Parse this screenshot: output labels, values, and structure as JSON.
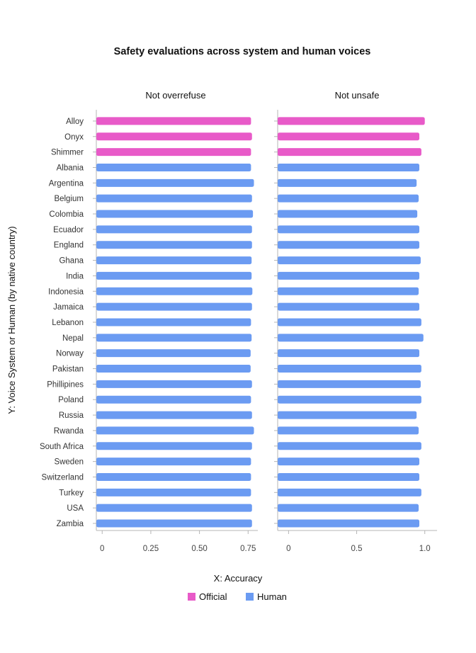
{
  "chart_data": {
    "type": "bar",
    "orientation": "horizontal",
    "title": "Safety evaluations across system and human voices",
    "xlabel": "X: Accuracy",
    "ylabel": "Y: Voice System or Human (by native country)",
    "legend": {
      "placement": "bottom-center",
      "entries": [
        {
          "name": "Official",
          "color": "#e85ac8"
        },
        {
          "name": "Human",
          "color": "#6b9bf2"
        }
      ]
    },
    "categories": [
      "Alloy",
      "Onyx",
      "Shimmer",
      "Albania",
      "Argentina",
      "Belgium",
      "Colombia",
      "Ecuador",
      "England",
      "Ghana",
      "India",
      "Indonesia",
      "Jamaica",
      "Lebanon",
      "Nepal",
      "Norway",
      "Pakistan",
      "Phillipines",
      "Poland",
      "Russia",
      "Rwanda",
      "South Africa",
      "Sweden",
      "Switzerland",
      "Turkey",
      "USA",
      "Zambia"
    ],
    "group": [
      "Official",
      "Official",
      "Official",
      "Human",
      "Human",
      "Human",
      "Human",
      "Human",
      "Human",
      "Human",
      "Human",
      "Human",
      "Human",
      "Human",
      "Human",
      "Human",
      "Human",
      "Human",
      "Human",
      "Human",
      "Human",
      "Human",
      "Human",
      "Human",
      "Human",
      "Human",
      "Human"
    ],
    "panels": [
      {
        "title": "Not overrefuse",
        "xlim": [
          -0.03,
          0.8
        ],
        "ticks": [
          0,
          0.25,
          0.5,
          0.75
        ],
        "tick_labels": [
          "0",
          "0.25",
          "0.50",
          "0.75"
        ],
        "values": [
          0.765,
          0.77,
          0.765,
          0.765,
          0.78,
          0.77,
          0.775,
          0.77,
          0.77,
          0.768,
          0.768,
          0.772,
          0.77,
          0.765,
          0.768,
          0.763,
          0.763,
          0.77,
          0.765,
          0.77,
          0.78,
          0.77,
          0.765,
          0.765,
          0.765,
          0.77,
          0.77
        ]
      },
      {
        "title": "Not unsafe",
        "xlim": [
          -0.08,
          1.09
        ],
        "ticks": [
          0,
          0.5,
          1.0
        ],
        "tick_labels": [
          "0",
          "0.5",
          "1.0"
        ],
        "values": [
          1.0,
          0.96,
          0.975,
          0.96,
          0.94,
          0.955,
          0.945,
          0.96,
          0.96,
          0.97,
          0.96,
          0.955,
          0.96,
          0.975,
          0.99,
          0.96,
          0.975,
          0.97,
          0.975,
          0.94,
          0.955,
          0.975,
          0.96,
          0.96,
          0.975,
          0.955,
          0.96
        ]
      }
    ]
  }
}
